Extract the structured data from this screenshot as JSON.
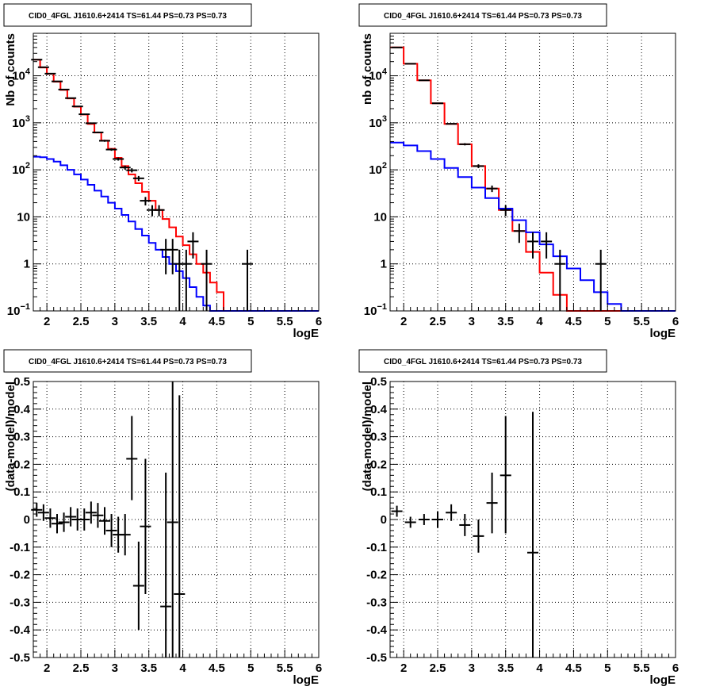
{
  "chart_data": [
    {
      "type": "line",
      "title": "CID0_4FGL J1610.6+2414 TS=61.44 PS=0.73 PS=0.73",
      "xlabel": "logE",
      "ylabel": "Nb of counts",
      "yscale": "log",
      "xlim": [
        1.8,
        6.0
      ],
      "ylim": [
        0.1,
        80000
      ],
      "grid": true,
      "xticks": [
        "2",
        "2.5",
        "3",
        "3.5",
        "4",
        "4.5",
        "5",
        "5.5",
        "6"
      ],
      "yticks": [
        "10^-1",
        "1",
        "10",
        "10^2",
        "10^3",
        "10^4"
      ],
      "edges": [
        1.8,
        1.9,
        2.0,
        2.1,
        2.2,
        2.3,
        2.4,
        2.5,
        2.6,
        2.7,
        2.8,
        2.9,
        3.0,
        3.1,
        3.2,
        3.3,
        3.4,
        3.5,
        3.6,
        3.7,
        3.8,
        3.9,
        4.0,
        4.1,
        4.2,
        4.3,
        4.4,
        4.5,
        4.6,
        4.7,
        4.8,
        4.9,
        5.0,
        5.1,
        5.2,
        5.3,
        5.4,
        5.5,
        5.6,
        5.7,
        5.8,
        5.9,
        6.0
      ],
      "series": [
        {
          "color": "#ff0000",
          "style": "step",
          "values": [
            22000,
            15000,
            11000,
            7500,
            5000,
            3300,
            2200,
            1500,
            950,
            620,
            420,
            280,
            180,
            120,
            80,
            52,
            34,
            22,
            14,
            9,
            6,
            3.8,
            2.5,
            1.6,
            1.0,
            0.65,
            0.4,
            0.25,
            0.1,
            0.1,
            0.1,
            0.1,
            0.1,
            0.1,
            0.1,
            0.1,
            0.1,
            0.1,
            0.1,
            0.1,
            0.1,
            0.1
          ]
        },
        {
          "color": "#0000ff",
          "style": "step",
          "values": [
            190,
            185,
            170,
            150,
            125,
            100,
            80,
            62,
            48,
            36,
            27,
            20,
            15,
            11,
            8,
            5.5,
            4,
            2.8,
            2,
            1.4,
            1.0,
            0.7,
            0.5,
            0.32,
            0.2,
            0.13,
            0.1,
            0.1,
            0.1,
            0.1,
            0.1,
            0.1,
            0.1,
            0.1,
            0.1,
            0.1,
            0.1,
            0.1,
            0.1,
            0.1,
            0.1,
            0.1
          ]
        }
      ],
      "points": [
        {
          "x": 1.85,
          "y": 22000,
          "ylo": 21850,
          "yhi": 22150
        },
        {
          "x": 1.95,
          "y": 15200,
          "ylo": 15080,
          "yhi": 15320
        },
        {
          "x": 2.05,
          "y": 11100,
          "ylo": 11000,
          "yhi": 11200
        },
        {
          "x": 2.15,
          "y": 7600,
          "ylo": 7510,
          "yhi": 7690
        },
        {
          "x": 2.25,
          "y": 5100,
          "ylo": 5030,
          "yhi": 5170
        },
        {
          "x": 2.35,
          "y": 3350,
          "ylo": 3290,
          "yhi": 3410
        },
        {
          "x": 2.45,
          "y": 2230,
          "ylo": 2180,
          "yhi": 2280
        },
        {
          "x": 2.55,
          "y": 1520,
          "ylo": 1480,
          "yhi": 1560
        },
        {
          "x": 2.65,
          "y": 980,
          "ylo": 950,
          "yhi": 1010
        },
        {
          "x": 2.75,
          "y": 625,
          "ylo": 600,
          "yhi": 650
        },
        {
          "x": 2.85,
          "y": 415,
          "ylo": 395,
          "yhi": 435
        },
        {
          "x": 2.95,
          "y": 270,
          "ylo": 254,
          "yhi": 286
        },
        {
          "x": 3.05,
          "y": 170,
          "ylo": 157,
          "yhi": 183
        },
        {
          "x": 3.15,
          "y": 112,
          "ylo": 101,
          "yhi": 123
        },
        {
          "x": 3.25,
          "y": 98,
          "ylo": 88,
          "yhi": 108
        },
        {
          "x": 3.35,
          "y": 66,
          "ylo": 58,
          "yhi": 74
        },
        {
          "x": 3.45,
          "y": 22,
          "ylo": 17.5,
          "yhi": 26.5
        },
        {
          "x": 3.55,
          "y": 14,
          "ylo": 10.3,
          "yhi": 17.7
        },
        {
          "x": 3.65,
          "y": 14,
          "ylo": 10.3,
          "yhi": 17.7
        },
        {
          "x": 3.75,
          "y": 2,
          "ylo": 0.6,
          "yhi": 3.4
        },
        {
          "x": 3.85,
          "y": 2,
          "ylo": 0.6,
          "yhi": 3.4
        },
        {
          "x": 3.95,
          "y": 1,
          "ylo": 0.1,
          "yhi": 2.0
        },
        {
          "x": 4.05,
          "y": 1,
          "ylo": 0.1,
          "yhi": 2.0
        },
        {
          "x": 4.15,
          "y": 3,
          "ylo": 1.3,
          "yhi": 4.7
        },
        {
          "x": 4.35,
          "y": 1,
          "ylo": 0.1,
          "yhi": 2.0
        },
        {
          "x": 4.95,
          "y": 1,
          "ylo": 0.1,
          "yhi": 2.0
        }
      ]
    },
    {
      "type": "line",
      "title": "CID0_4FGL J1610.6+2414 TS=61.44 PS=0.73 PS=0.73",
      "xlabel": "logE",
      "ylabel": "nb of counts",
      "yscale": "log",
      "xlim": [
        1.8,
        6.0
      ],
      "ylim": [
        0.1,
        80000
      ],
      "grid": true,
      "xticks": [
        "2",
        "2.5",
        "3",
        "3.5",
        "4",
        "4.5",
        "5",
        "5.5",
        "6"
      ],
      "yticks": [
        "10^-1",
        "1",
        "10",
        "10^2",
        "10^3",
        "10^4"
      ],
      "edges": [
        1.8,
        2.0,
        2.2,
        2.4,
        2.6,
        2.8,
        3.0,
        3.2,
        3.4,
        3.6,
        3.8,
        4.0,
        4.2,
        4.4,
        4.6,
        4.8,
        5.0,
        5.2,
        5.4,
        5.6,
        5.8,
        6.0
      ],
      "series": [
        {
          "color": "#ff0000",
          "style": "step",
          "values": [
            40000,
            18000,
            8000,
            2600,
            950,
            350,
            120,
            40,
            14,
            5,
            1.8,
            0.65,
            0.22,
            0.1,
            0.1,
            0.1,
            0.1,
            0.1,
            0.1,
            0.1,
            0.1
          ]
        },
        {
          "color": "#0000ff",
          "style": "step",
          "values": [
            380,
            330,
            250,
            170,
            110,
            70,
            42,
            25,
            15,
            8.5,
            4.7,
            2.6,
            1.45,
            0.8,
            0.45,
            0.25,
            0.14,
            0.1,
            0.1,
            0.1,
            0.1
          ]
        }
      ],
      "points": [
        {
          "x": 1.9,
          "y": 40000,
          "ylo": 39800,
          "yhi": 40200
        },
        {
          "x": 2.1,
          "y": 18000,
          "ylo": 17870,
          "yhi": 18130
        },
        {
          "x": 2.3,
          "y": 8000,
          "ylo": 7910,
          "yhi": 8090
        },
        {
          "x": 2.5,
          "y": 2600,
          "ylo": 2550,
          "yhi": 2650
        },
        {
          "x": 2.7,
          "y": 950,
          "ylo": 920,
          "yhi": 980
        },
        {
          "x": 2.9,
          "y": 350,
          "ylo": 331,
          "yhi": 369
        },
        {
          "x": 3.1,
          "y": 120,
          "ylo": 109,
          "yhi": 131
        },
        {
          "x": 3.3,
          "y": 40,
          "ylo": 33.7,
          "yhi": 46.3
        },
        {
          "x": 3.5,
          "y": 14,
          "ylo": 10.3,
          "yhi": 17.7
        },
        {
          "x": 3.7,
          "y": 5,
          "ylo": 2.8,
          "yhi": 7.2
        },
        {
          "x": 3.9,
          "y": 3,
          "ylo": 1.3,
          "yhi": 4.7
        },
        {
          "x": 4.1,
          "y": 3,
          "ylo": 1.3,
          "yhi": 4.7
        },
        {
          "x": 4.3,
          "y": 1,
          "ylo": 0.1,
          "yhi": 2.0
        },
        {
          "x": 4.9,
          "y": 1,
          "ylo": 0.1,
          "yhi": 2.0
        }
      ]
    },
    {
      "type": "scatter",
      "title": "CID0_4FGL J1610.6+2414 TS=61.44 PS=0.73 PS=0.73",
      "xlabel": "logE",
      "ylabel": "(data-model)/model",
      "xlim": [
        1.8,
        6.0
      ],
      "ylim": [
        -0.5,
        0.5
      ],
      "grid": true,
      "xticks": [
        "2",
        "2.5",
        "3",
        "3.5",
        "4",
        "4.5",
        "5",
        "5.5",
        "6"
      ],
      "yticks": [
        "-0.5",
        "-0.4",
        "-0.3",
        "-0.2",
        "-0.1",
        "0",
        "0.1",
        "0.2",
        "0.3",
        "0.4",
        "0.5"
      ],
      "points": [
        {
          "x": 1.85,
          "y": 0.035,
          "ylo": 0.01,
          "yhi": 0.06
        },
        {
          "x": 1.95,
          "y": 0.025,
          "ylo": -0.005,
          "yhi": 0.055
        },
        {
          "x": 2.05,
          "y": 0.005,
          "ylo": -0.03,
          "yhi": 0.04
        },
        {
          "x": 2.15,
          "y": -0.015,
          "ylo": -0.05,
          "yhi": 0.02
        },
        {
          "x": 2.25,
          "y": -0.01,
          "ylo": -0.045,
          "yhi": 0.025
        },
        {
          "x": 2.35,
          "y": 0.01,
          "ylo": -0.025,
          "yhi": 0.045
        },
        {
          "x": 2.45,
          "y": 0.0,
          "ylo": -0.04,
          "yhi": 0.04
        },
        {
          "x": 2.55,
          "y": 0.0,
          "ylo": -0.04,
          "yhi": 0.04
        },
        {
          "x": 2.65,
          "y": 0.025,
          "ylo": -0.015,
          "yhi": 0.065
        },
        {
          "x": 2.75,
          "y": 0.015,
          "ylo": -0.03,
          "yhi": 0.06
        },
        {
          "x": 2.85,
          "y": -0.005,
          "ylo": -0.055,
          "yhi": 0.045
        },
        {
          "x": 2.95,
          "y": -0.04,
          "ylo": -0.1,
          "yhi": 0.02
        },
        {
          "x": 3.05,
          "y": -0.055,
          "ylo": -0.12,
          "yhi": 0.01
        },
        {
          "x": 3.15,
          "y": -0.055,
          "ylo": -0.13,
          "yhi": 0.02
        },
        {
          "x": 3.25,
          "y": 0.22,
          "ylo": 0.07,
          "yhi": 0.375
        },
        {
          "x": 3.35,
          "y": -0.24,
          "ylo": -0.4,
          "yhi": -0.08
        },
        {
          "x": 3.45,
          "y": -0.025,
          "ylo": -0.27,
          "yhi": 0.22
        },
        {
          "x": 3.75,
          "y": -0.315,
          "ylo": -0.5,
          "yhi": 0.17
        },
        {
          "x": 3.85,
          "y": -0.01,
          "ylo": -0.5,
          "yhi": 0.5
        },
        {
          "x": 3.95,
          "y": -0.27,
          "ylo": -0.5,
          "yhi": 0.45
        }
      ]
    },
    {
      "type": "scatter",
      "title": "CID0_4FGL J1610.6+2414 TS=61.44 PS=0.73 PS=0.73",
      "xlabel": "logE",
      "ylabel": "(data-model)/model",
      "xlim": [
        1.8,
        6.0
      ],
      "ylim": [
        -0.5,
        0.5
      ],
      "grid": true,
      "xticks": [
        "2",
        "2.5",
        "3",
        "3.5",
        "4",
        "4.5",
        "5",
        "5.5",
        "6"
      ],
      "yticks": [
        "-0.5",
        "-0.4",
        "-0.3",
        "-0.2",
        "-0.1",
        "0",
        "0.1",
        "0.2",
        "0.3",
        "0.4",
        "0.5"
      ],
      "points": [
        {
          "x": 1.9,
          "y": 0.03,
          "ylo": 0.01,
          "yhi": 0.05
        },
        {
          "x": 2.1,
          "y": -0.01,
          "ylo": -0.03,
          "yhi": 0.01
        },
        {
          "x": 2.3,
          "y": 0.0,
          "ylo": -0.02,
          "yhi": 0.02
        },
        {
          "x": 2.5,
          "y": 0.0,
          "ylo": -0.03,
          "yhi": 0.03
        },
        {
          "x": 2.7,
          "y": 0.025,
          "ylo": -0.005,
          "yhi": 0.055
        },
        {
          "x": 2.9,
          "y": -0.02,
          "ylo": -0.06,
          "yhi": 0.02
        },
        {
          "x": 3.1,
          "y": -0.06,
          "ylo": -0.12,
          "yhi": 0.0
        },
        {
          "x": 3.3,
          "y": 0.06,
          "ylo": -0.05,
          "yhi": 0.17
        },
        {
          "x": 3.5,
          "y": 0.16,
          "ylo": -0.05,
          "yhi": 0.375
        },
        {
          "x": 3.9,
          "y": -0.12,
          "ylo": -0.5,
          "yhi": 0.39
        }
      ]
    }
  ]
}
